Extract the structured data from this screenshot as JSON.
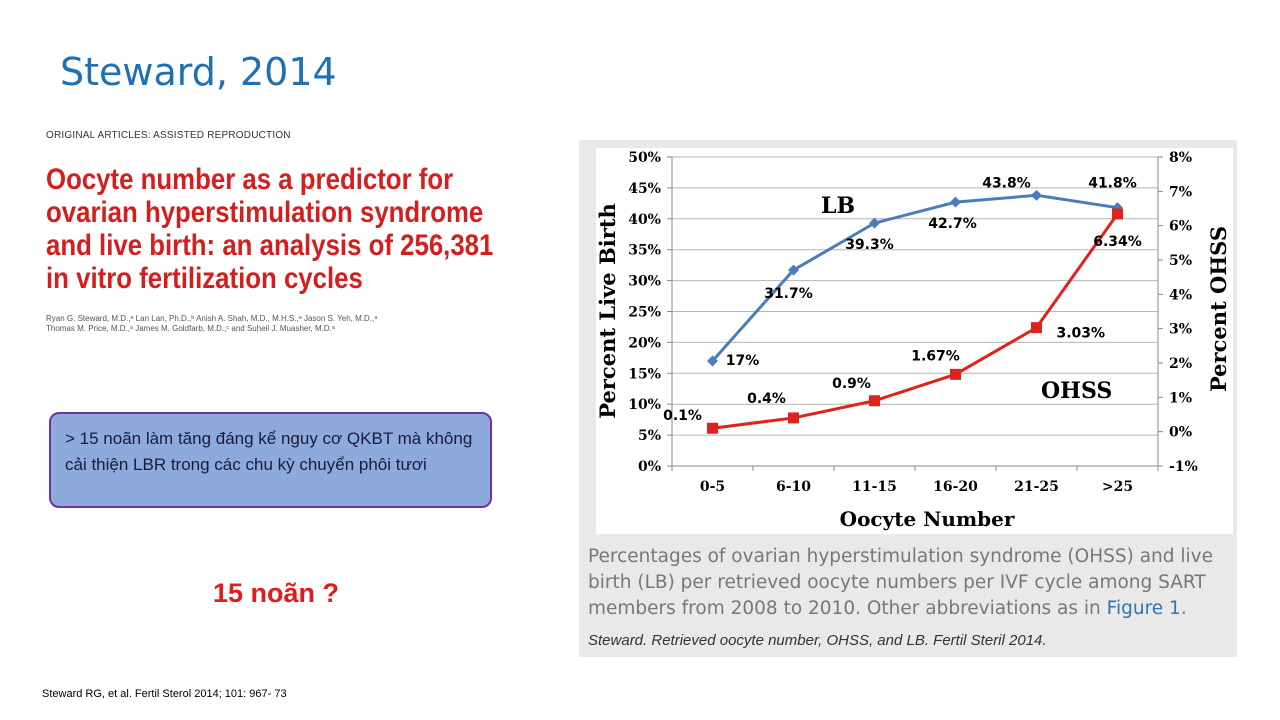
{
  "slide": {
    "title": "Steward, 2014",
    "article_type": "ORIGINAL ARTICLES: ASSISTED REPRODUCTION",
    "article_title_lines": [
      "Oocyte number as a predictor for",
      "ovarian hyperstimulation syndrome",
      "and live birth: an analysis of 256,381",
      "in vitro fertilization cycles"
    ],
    "authors_line1": "Ryan G. Steward, M.D.,ᵃ Lan Lan, Ph.D.,ᵇ Anish A. Shah, M.D., M.H.S.,ᵃ Jason S. Yeh, M.D.,ᵃ",
    "authors_line2": "Thomas M. Price, M.D.,ᵃ James M. Goldfarb, M.D.,ᶜ and Suheil J. Muasher, M.D.ᵃ",
    "callout_text": "> 15 noãn làm tăng đáng kể nguy cơ QKBT mà không cải thiện LBR trong các chu kỳ chuyển phôi tươi",
    "question": "15 noãn ?",
    "reference": "Steward RG, et al. Fertil Sterol 2014; 101: 967- 73"
  },
  "figure": {
    "caption_lines": [
      "Percentages of ovarian hyperstimulation syndrome (OHSS) and live",
      "birth (LB) per retrieved oocyte numbers per IVF cycle among SART"
    ],
    "caption_line3_prefix": "members from 2008 to 2010. Other abbreviations as in ",
    "caption_link": "Figure 1",
    "caption_line3_suffix": ".",
    "citation": "Steward. Retrieved oocyte number, OHSS, and LB. Fertil Steril 2014."
  },
  "chart_data": {
    "type": "line",
    "xlabel": "Oocyte Number",
    "ylabel_left": "Percent Live Birth",
    "ylabel_right": "Percent OHSS",
    "categories": [
      "0-5",
      "6-10",
      "11-15",
      "16-20",
      "21-25",
      ">25"
    ],
    "ylim_left": [
      0,
      50
    ],
    "yticks_left": [
      "0%",
      "5%",
      "10%",
      "15%",
      "20%",
      "25%",
      "30%",
      "35%",
      "40%",
      "45%",
      "50%"
    ],
    "ylim_right": [
      -1,
      8
    ],
    "yticks_right": [
      "-1%",
      "0%",
      "1%",
      "2%",
      "3%",
      "4%",
      "5%",
      "6%",
      "7%",
      "8%"
    ],
    "grid": "horizontal",
    "series": [
      {
        "name": "LB",
        "axis": "left",
        "color": "#4a7ebb",
        "marker": "diamond",
        "values": [
          17,
          31.7,
          39.3,
          42.7,
          43.8,
          41.8
        ],
        "labels": [
          "17%",
          "31.7%",
          "39.3%",
          "42.7%",
          "43.8%",
          "41.8%"
        ]
      },
      {
        "name": "OHSS",
        "axis": "right",
        "color": "#e0221c",
        "marker": "square",
        "values": [
          0.1,
          0.4,
          0.9,
          1.67,
          3.03,
          6.34
        ],
        "labels": [
          "0.1%",
          "0.4%",
          "0.9%",
          "1.67%",
          "3.03%",
          "6.34%"
        ]
      }
    ]
  }
}
